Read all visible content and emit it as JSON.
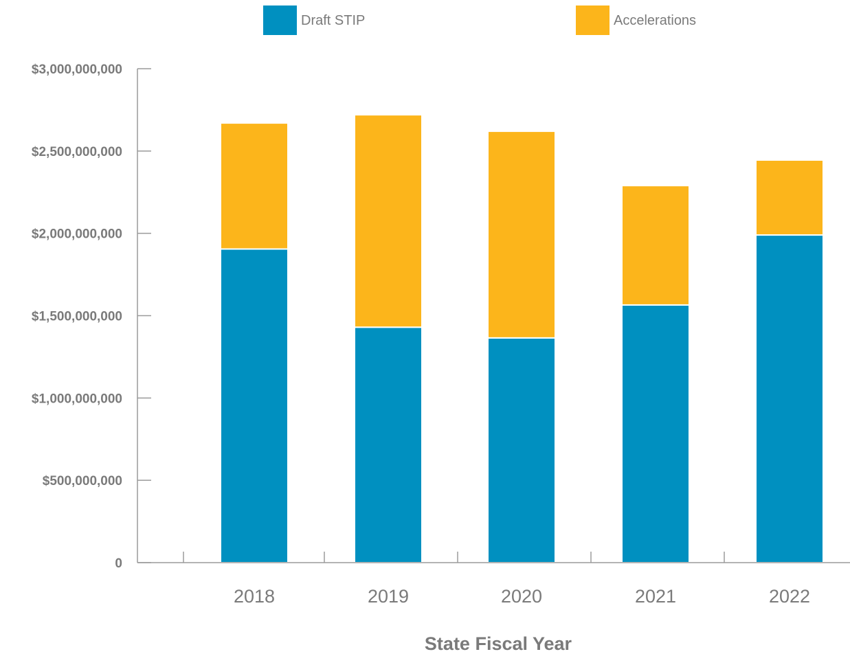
{
  "chart_data": {
    "type": "bar",
    "stacked": true,
    "categories": [
      "2018",
      "2019",
      "2020",
      "2021",
      "2022"
    ],
    "series": [
      {
        "name": "Draft STIP",
        "color": "#0090c0",
        "values": [
          1905000000,
          1430000000,
          1365000000,
          1565000000,
          1990000000
        ]
      },
      {
        "name": "Accelerations",
        "color": "#fcb51b",
        "values": [
          765000000,
          1290000000,
          1255000000,
          725000000,
          455000000
        ]
      }
    ],
    "xlabel": "State Fiscal Year",
    "ylabel": "",
    "ylim": [
      0,
      3000000000
    ],
    "yticks": [
      {
        "value": 0,
        "label": "0"
      },
      {
        "value": 500000000,
        "label": "$500,000,000"
      },
      {
        "value": 1000000000,
        "label": "$1,000,000,000"
      },
      {
        "value": 1500000000,
        "label": "$1,500,000,000"
      },
      {
        "value": 2000000000,
        "label": "$2,000,000,000"
      },
      {
        "value": 2500000000,
        "label": "$2,500,000,000"
      },
      {
        "value": 3000000000,
        "label": "$3,000,000,000"
      }
    ],
    "grid": false,
    "legend_position": "top"
  }
}
